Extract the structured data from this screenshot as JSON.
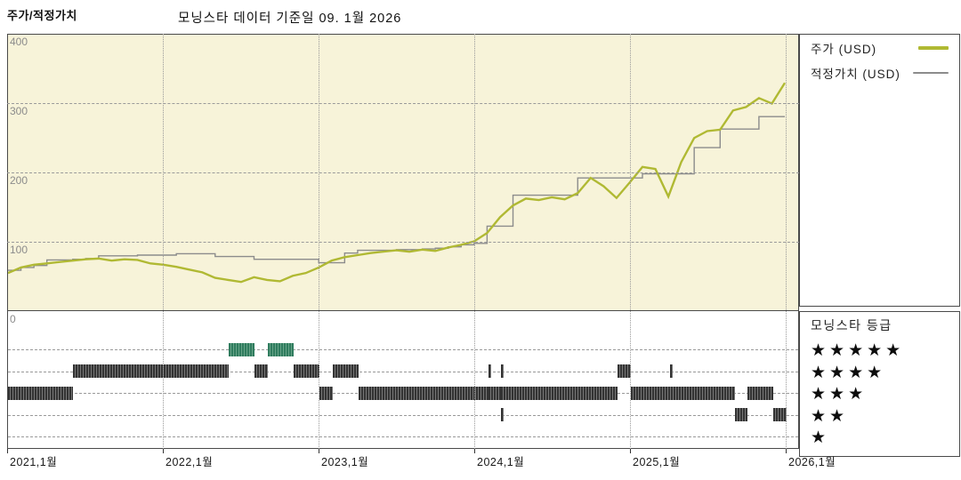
{
  "header": {
    "title": "주가/적정가치",
    "subtitle": "모닝스타 데이터 기준일 09. 1월 2026"
  },
  "legend": {
    "price_label": "주가 (USD)",
    "fair_value_label": "적정가치 (USD)"
  },
  "rating_legend": {
    "title": "모닝스타 등급",
    "rows": [
      5,
      4,
      3,
      2,
      1
    ]
  },
  "colors": {
    "price_line": "#b0b933",
    "fair_value_line": "#8c8c8c",
    "plot_background": "#f7f3d9",
    "rating_bar": "#333333",
    "rating_bar_5star": "#2f7c5e",
    "grid": "#9a9a9a"
  },
  "axes": {
    "y_ticks": [
      400,
      300,
      200,
      100,
      0
    ],
    "x_ticks": [
      "2021,1월",
      "2022,1월",
      "2023,1월",
      "2024,1월",
      "2025,1월",
      "2026,1월"
    ],
    "y_range": [
      0,
      400
    ]
  },
  "chart_data": [
    {
      "type": "line",
      "title": "주가/적정가치",
      "ylabel": "USD",
      "ylim": [
        0,
        400
      ],
      "grid": true,
      "legend_position": "right",
      "x": [
        "2021-01",
        "2021-02",
        "2021-03",
        "2021-04",
        "2021-05",
        "2021-06",
        "2021-07",
        "2021-08",
        "2021-09",
        "2021-10",
        "2021-11",
        "2021-12",
        "2022-01",
        "2022-02",
        "2022-03",
        "2022-04",
        "2022-05",
        "2022-06",
        "2022-07",
        "2022-08",
        "2022-09",
        "2022-10",
        "2022-11",
        "2022-12",
        "2023-01",
        "2023-02",
        "2023-03",
        "2023-04",
        "2023-05",
        "2023-06",
        "2023-07",
        "2023-08",
        "2023-09",
        "2023-10",
        "2023-11",
        "2023-12",
        "2024-01",
        "2024-02",
        "2024-03",
        "2024-04",
        "2024-05",
        "2024-06",
        "2024-07",
        "2024-08",
        "2024-09",
        "2024-10",
        "2024-11",
        "2024-12",
        "2025-01",
        "2025-02",
        "2025-03",
        "2025-04",
        "2025-05",
        "2025-06",
        "2025-07",
        "2025-08",
        "2025-09",
        "2025-10",
        "2025-11",
        "2025-12",
        "2026-01"
      ],
      "series": [
        {
          "name": "주가 (USD)",
          "color": "#b0b933",
          "interpolation": "linear",
          "values": [
            54,
            62,
            66,
            68,
            70,
            72,
            74,
            75,
            72,
            74,
            73,
            68,
            66,
            63,
            59,
            55,
            47,
            44,
            41,
            48,
            44,
            42,
            50,
            54,
            62,
            72,
            77,
            80,
            83,
            85,
            87,
            85,
            88,
            86,
            91,
            95,
            100,
            112,
            135,
            152,
            162,
            160,
            164,
            161,
            170,
            192,
            180,
            163,
            185,
            208,
            205,
            165,
            215,
            250,
            260,
            262,
            290,
            295,
            308,
            300,
            330
          ]
        },
        {
          "name": "적정가치 (USD)",
          "color": "#8c8c8c",
          "interpolation": "step-after",
          "values": [
            58,
            62,
            65,
            73,
            73,
            74,
            75,
            79,
            79,
            79,
            80,
            80,
            80,
            82,
            82,
            82,
            78,
            78,
            78,
            74,
            74,
            74,
            74,
            74,
            69,
            69,
            83,
            87,
            87,
            87,
            88,
            88,
            89,
            90,
            92,
            95,
            97,
            122,
            122,
            167,
            167,
            167,
            167,
            167,
            192,
            192,
            192,
            192,
            192,
            198,
            198,
            198,
            198,
            236,
            236,
            263,
            263,
            263,
            281,
            281,
            281
          ]
        }
      ]
    },
    {
      "type": "timeline",
      "title": "모닝스타 등급",
      "rows": [
        5,
        4,
        3,
        2,
        1
      ],
      "segments": [
        {
          "rating": 3,
          "from": "2021-01",
          "to": "2021-06"
        },
        {
          "rating": 4,
          "from": "2021-06",
          "to": "2022-06"
        },
        {
          "rating": 5,
          "from": "2022-06",
          "to": "2022-08"
        },
        {
          "rating": 4,
          "from": "2022-08",
          "to": "2022-09"
        },
        {
          "rating": 5,
          "from": "2022-09",
          "to": "2022-11"
        },
        {
          "rating": 4,
          "from": "2022-11",
          "to": "2023-01"
        },
        {
          "rating": 3,
          "from": "2023-01",
          "to": "2023-02"
        },
        {
          "rating": 4,
          "from": "2023-02",
          "to": "2023-04"
        },
        {
          "rating": 3,
          "from": "2023-04",
          "to": "2024-02"
        },
        {
          "rating": 4,
          "from": "2024-02",
          "to": "2024-02"
        },
        {
          "rating": 3,
          "from": "2024-02",
          "to": "2024-03"
        },
        {
          "rating": 2,
          "from": "2024-03",
          "to": "2024-03"
        },
        {
          "rating": 4,
          "from": "2024-03",
          "to": "2024-03"
        },
        {
          "rating": 3,
          "from": "2024-03",
          "to": "2024-12"
        },
        {
          "rating": 4,
          "from": "2024-12",
          "to": "2025-01"
        },
        {
          "rating": 3,
          "from": "2025-01",
          "to": "2025-09"
        },
        {
          "rating": 4,
          "from": "2025-04",
          "to": "2025-04"
        },
        {
          "rating": 2,
          "from": "2025-09",
          "to": "2025-10"
        },
        {
          "rating": 3,
          "from": "2025-10",
          "to": "2025-12"
        },
        {
          "rating": 2,
          "from": "2025-12",
          "to": "2026-01"
        }
      ]
    }
  ]
}
